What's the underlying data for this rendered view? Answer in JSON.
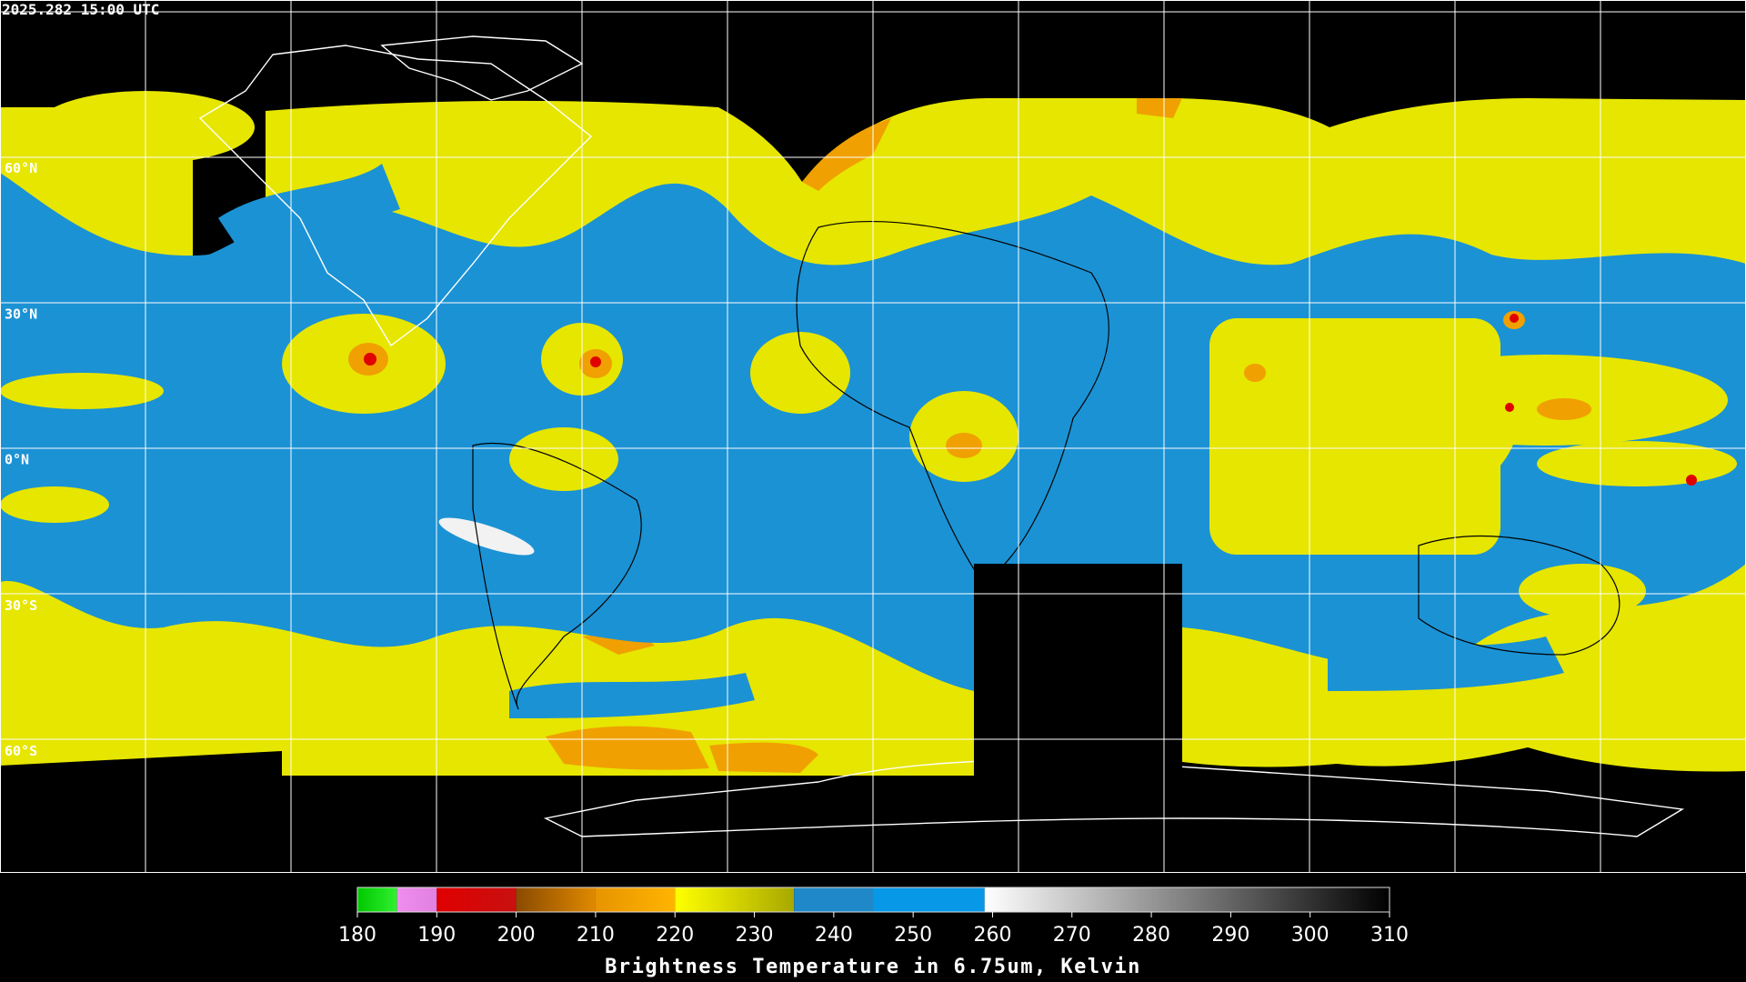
{
  "timestamp": "2025.282 15:00 UTC",
  "map": {
    "lat_labels": [
      "60°N",
      "30°N",
      "0°N",
      "30°S",
      "60°S"
    ]
  },
  "chart_data": {
    "type": "colorbar",
    "title": "Brightness Temperature in 6.75um, Kelvin",
    "xlim": [
      180,
      310
    ],
    "xticks": [
      180,
      190,
      200,
      210,
      220,
      230,
      240,
      250,
      260,
      270,
      280,
      290,
      300,
      310
    ],
    "segments": [
      {
        "from": 180,
        "to": 185,
        "colors": [
          "#00c800",
          "#30f030"
        ]
      },
      {
        "from": 185,
        "to": 190,
        "colors": [
          "#f08ef0",
          "#e080e0"
        ]
      },
      {
        "from": 190,
        "to": 200,
        "colors": [
          "#e00000",
          "#c81010"
        ]
      },
      {
        "from": 200,
        "to": 210,
        "colors": [
          "#8a4a00",
          "#e08a00"
        ]
      },
      {
        "from": 210,
        "to": 220,
        "colors": [
          "#e89400",
          "#ffb400"
        ]
      },
      {
        "from": 220,
        "to": 235,
        "colors": [
          "#ffff00",
          "#a8a800"
        ]
      },
      {
        "from": 235,
        "to": 245,
        "colors": [
          "#1e88c8",
          "#1e88c8"
        ]
      },
      {
        "from": 245,
        "to": 259,
        "colors": [
          "#0898e8",
          "#0898e8"
        ]
      },
      {
        "from": 259,
        "to": 310,
        "colors": [
          "#ffffff",
          "#000000"
        ]
      }
    ]
  }
}
